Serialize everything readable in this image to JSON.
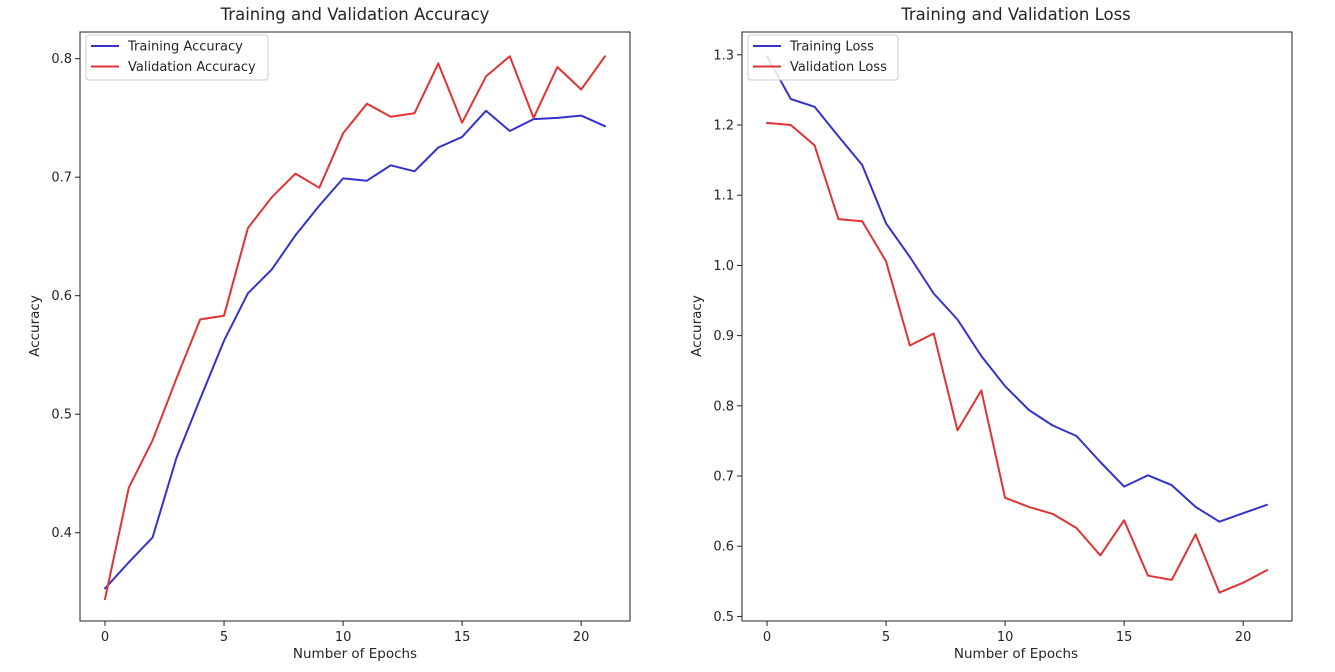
{
  "chart_data": [
    {
      "type": "line",
      "title": "Training and Validation Accuracy",
      "xlabel": "Number of Epochs",
      "ylabel": "Accuracy",
      "xlim": [
        -1.05,
        22.05
      ],
      "ylim": [
        0.3255,
        0.8225
      ],
      "xticks": [
        0,
        5,
        10,
        15,
        20
      ],
      "yticks": [
        0.4,
        0.5,
        0.6,
        0.7,
        0.8
      ],
      "ytick_labels": [
        "0.4",
        "0.5",
        "0.6",
        "0.7",
        "0.8"
      ],
      "grid": false,
      "legend_position": "top-left",
      "x": [
        0,
        1,
        2,
        3,
        4,
        5,
        6,
        7,
        8,
        9,
        10,
        11,
        12,
        13,
        14,
        15,
        16,
        17,
        18,
        19,
        20,
        21
      ],
      "series": [
        {
          "name": "Training Accuracy",
          "color": "#3333cc",
          "values": [
            0.353,
            0.375,
            0.396,
            0.463,
            0.513,
            0.562,
            0.602,
            0.622,
            0.651,
            0.676,
            0.699,
            0.697,
            0.71,
            0.705,
            0.725,
            0.734,
            0.756,
            0.739,
            0.749,
            0.75,
            0.752,
            0.743
          ]
        },
        {
          "name": "Validation Accuracy",
          "color": "#e03333",
          "values": [
            0.344,
            0.438,
            0.478,
            0.53,
            0.58,
            0.583,
            0.657,
            0.683,
            0.703,
            0.691,
            0.737,
            0.762,
            0.751,
            0.754,
            0.796,
            0.746,
            0.785,
            0.802,
            0.75,
            0.793,
            0.774,
            0.802
          ]
        }
      ]
    },
    {
      "type": "line",
      "title": "Training and Validation Loss",
      "xlabel": "Number of Epochs",
      "ylabel": "Accuracy",
      "xlim": [
        -1.05,
        22.05
      ],
      "ylim": [
        0.4935,
        1.3325
      ],
      "xticks": [
        0,
        5,
        10,
        15,
        20
      ],
      "yticks": [
        0.5,
        0.6,
        0.7,
        0.8,
        0.9,
        1.0,
        1.1,
        1.2,
        1.3
      ],
      "ytick_labels": [
        "0.5",
        "0.6",
        "0.7",
        "0.8",
        "0.9",
        "1.0",
        "1.1",
        "1.2",
        "1.3"
      ],
      "grid": false,
      "legend_position": "top-left",
      "x": [
        0,
        1,
        2,
        3,
        4,
        5,
        6,
        7,
        8,
        9,
        10,
        11,
        12,
        13,
        14,
        15,
        16,
        17,
        18,
        19,
        20,
        21
      ],
      "series": [
        {
          "name": "Training Loss",
          "color": "#3333cc",
          "values": [
            1.298,
            1.237,
            1.226,
            1.184,
            1.143,
            1.06,
            1.012,
            0.96,
            0.923,
            0.871,
            0.828,
            0.794,
            0.772,
            0.757,
            0.72,
            0.685,
            0.701,
            0.687,
            0.656,
            0.635,
            0.647,
            0.659
          ]
        },
        {
          "name": "Validation Loss",
          "color": "#e03333",
          "values": [
            1.203,
            1.2,
            1.171,
            1.066,
            1.063,
            1.006,
            0.886,
            0.903,
            0.765,
            0.822,
            0.669,
            0.656,
            0.646,
            0.626,
            0.587,
            0.637,
            0.558,
            0.552,
            0.617,
            0.534,
            0.548,
            0.566
          ]
        }
      ]
    }
  ]
}
